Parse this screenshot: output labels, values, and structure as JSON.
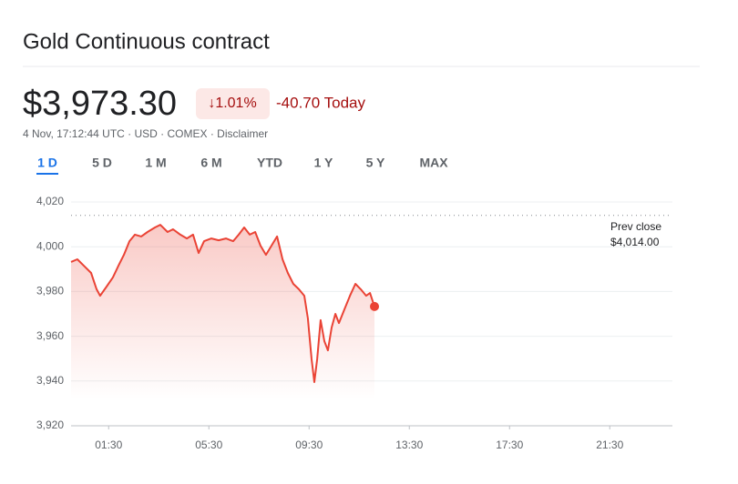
{
  "chart_data": {
    "type": "line",
    "title": "Gold Continuous contract",
    "price": "$3,973.30",
    "change_percent": "↓1.01%",
    "change_today": "-40.70 Today",
    "meta": "4 Nov, 17:12:44 UTC · USD · COMEX · Disclaimer",
    "ranges": [
      "1 D",
      "5 D",
      "1 M",
      "6 M",
      "YTD",
      "1 Y",
      "5 Y",
      "MAX"
    ],
    "selected_range": 0,
    "color": "#ea4335",
    "x": [
      0,
      0.25,
      0.51,
      0.8,
      1.02,
      1.16,
      1.42,
      1.67,
      1.89,
      2.11,
      2.33,
      2.55,
      2.8,
      3.05,
      3.35,
      3.56,
      3.85,
      4.07,
      4.36,
      4.62,
      4.87,
      5.09,
      5.31,
      5.6,
      5.89,
      6.18,
      6.47,
      6.69,
      6.91,
      7.13,
      7.35,
      7.56,
      7.78,
      8,
      8.22,
      8.44,
      8.65,
      8.87,
      9.09,
      9.31,
      9.45,
      9.6,
      9.71,
      9.82,
      9.96,
      10.11,
      10.25,
      10.4,
      10.55,
      10.69,
      10.91,
      11.13,
      11.35,
      11.56,
      11.78,
      11.93,
      12.11
    ],
    "values": [
      3993.2,
      3994.4,
      3991.5,
      3988.3,
      3981,
      3978.1,
      3982.2,
      3986.3,
      3991.5,
      3996.4,
      4002.5,
      4005.4,
      4004.6,
      4006.6,
      4008.6,
      4009.8,
      4006.6,
      4007.8,
      4005.4,
      4003.7,
      4005.4,
      3997.2,
      4002.5,
      4003.7,
      4002.9,
      4003.7,
      4002.5,
      4005.4,
      4008.6,
      4005.4,
      4006.6,
      4000.5,
      3996.4,
      4000.5,
      4004.6,
      3994.4,
      3988.3,
      3983.4,
      3981,
      3978.1,
      3968,
      3949.7,
      3939.5,
      3949.7,
      3967.2,
      3957.8,
      3953.7,
      3963.9,
      3970,
      3965.9,
      3972,
      3978.1,
      3983.4,
      3981,
      3978.1,
      3979.3,
      3973.3
    ],
    "xlim": [
      0,
      24
    ],
    "xticks": [
      {
        "value": 1.5,
        "label": "01:30"
      },
      {
        "value": 5.5,
        "label": "05:30"
      },
      {
        "value": 9.5,
        "label": "09:30"
      },
      {
        "value": 13.5,
        "label": "13:30"
      },
      {
        "value": 17.5,
        "label": "17:30"
      },
      {
        "value": 21.5,
        "label": "21:30"
      }
    ],
    "ylim": [
      3920,
      4020
    ],
    "yticks": [
      {
        "value": 3920,
        "label": "3,920"
      },
      {
        "value": 3940,
        "label": "3,940"
      },
      {
        "value": 3960,
        "label": "3,960"
      },
      {
        "value": 3980,
        "label": "3,980"
      },
      {
        "value": 4000,
        "label": "4,000"
      },
      {
        "value": 4020,
        "label": "4,020"
      }
    ],
    "grid": true,
    "prev_close_title": "Prev close",
    "prev_close": {
      "value": 4014,
      "label": "$4,014.00"
    }
  }
}
